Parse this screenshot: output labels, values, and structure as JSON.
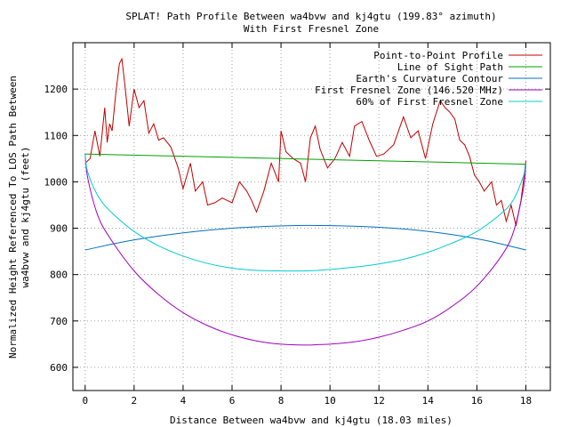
{
  "chart_data": {
    "type": "line",
    "title": "SPLAT! Path Profile Between wa4bvw and kj4gtu (199.83° azimuth)",
    "subtitle": "With First Fresnel Zone",
    "xlabel": "Distance Between wa4bvw and kj4gtu (18.03 miles)",
    "ylabel_line1": "Normalized Height Referenced To LOS Path Between",
    "ylabel_line2": "wa4bvw and kj4gtu (feet)",
    "xlim": [
      -0.5,
      19.0
    ],
    "ylim": [
      550,
      1300
    ],
    "x_ticks": [
      0,
      2,
      4,
      6,
      8,
      10,
      12,
      14,
      16,
      18
    ],
    "y_ticks": [
      600,
      700,
      800,
      900,
      1000,
      1100,
      1200
    ],
    "grid": true,
    "legend_position": "top-right",
    "series": [
      {
        "name": "Point-to-Point Profile",
        "color": "#c00000",
        "x": [
          0.0,
          0.2,
          0.4,
          0.6,
          0.8,
          0.9,
          1.0,
          1.1,
          1.25,
          1.4,
          1.5,
          1.6,
          1.7,
          1.8,
          2.0,
          2.2,
          2.4,
          2.6,
          2.8,
          3.0,
          3.2,
          3.5,
          3.8,
          4.0,
          4.3,
          4.5,
          4.8,
          5.0,
          5.3,
          5.6,
          6.0,
          6.3,
          6.6,
          6.8,
          7.0,
          7.3,
          7.6,
          7.9,
          8.0,
          8.2,
          8.5,
          8.8,
          9.0,
          9.2,
          9.4,
          9.6,
          9.9,
          10.2,
          10.5,
          10.8,
          11.0,
          11.3,
          11.6,
          11.9,
          12.2,
          12.6,
          13.0,
          13.3,
          13.6,
          13.9,
          14.2,
          14.5,
          14.7,
          14.9,
          15.1,
          15.3,
          15.5,
          15.7,
          15.9,
          16.1,
          16.3,
          16.6,
          16.8,
          17.0,
          17.2,
          17.4,
          17.6,
          17.8,
          18.0
        ],
        "values": [
          1040,
          1050,
          1110,
          1055,
          1160,
          1085,
          1125,
          1110,
          1190,
          1255,
          1265,
          1220,
          1170,
          1120,
          1200,
          1160,
          1175,
          1105,
          1125,
          1090,
          1095,
          1075,
          1030,
          985,
          1040,
          980,
          1000,
          950,
          955,
          965,
          955,
          1000,
          980,
          960,
          935,
          980,
          1040,
          1000,
          1110,
          1065,
          1050,
          1040,
          1000,
          1095,
          1120,
          1070,
          1030,
          1050,
          1085,
          1055,
          1120,
          1130,
          1090,
          1055,
          1060,
          1080,
          1140,
          1095,
          1110,
          1050,
          1125,
          1175,
          1160,
          1150,
          1135,
          1090,
          1080,
          1055,
          1015,
          1000,
          980,
          1000,
          950,
          960,
          915,
          950,
          905,
          960,
          1045
        ]
      },
      {
        "name": "Line of Sight Path",
        "color": "#00a000",
        "x": [
          0.0,
          18.0
        ],
        "values": [
          1060,
          1038
        ]
      },
      {
        "name": "Earth's Curvature Contour",
        "color": "#0070c0",
        "type": "curve",
        "x": [
          0.0,
          1.5,
          3.0,
          4.5,
          6.0,
          7.5,
          9.0,
          10.5,
          12.0,
          13.5,
          15.0,
          16.5,
          18.0
        ],
        "values": [
          853,
          870,
          883,
          893,
          900,
          904,
          906,
          905,
          902,
          896,
          886,
          872,
          853
        ]
      },
      {
        "name": "First Fresnel Zone (146.520 MHz)",
        "color": "#a000c0",
        "type": "curve",
        "x": [
          0.0,
          0.1,
          0.5,
          1.0,
          2.0,
          3.0,
          4.0,
          5.0,
          6.0,
          7.0,
          8.0,
          9.0,
          9.5,
          10.0,
          11.0,
          12.0,
          13.0,
          14.0,
          15.0,
          16.0,
          17.0,
          17.5,
          17.9,
          18.0
        ],
        "values": [
          1060,
          1010,
          930,
          880,
          808,
          757,
          718,
          690,
          670,
          657,
          650,
          648,
          649,
          650,
          655,
          665,
          680,
          700,
          732,
          775,
          840,
          893,
          985,
          1038
        ]
      },
      {
        "name": "60% of First Fresnel Zone",
        "color": "#00cccc",
        "type": "curve",
        "x": [
          0.0,
          0.1,
          0.5,
          1.0,
          2.0,
          3.0,
          4.0,
          5.0,
          6.0,
          7.0,
          8.0,
          9.0,
          9.5,
          10.0,
          11.0,
          12.0,
          13.0,
          14.0,
          15.0,
          16.0,
          17.0,
          17.5,
          17.9,
          18.0
        ],
        "values": [
          1060,
          1022,
          972,
          938,
          893,
          862,
          840,
          824,
          814,
          809,
          808,
          808,
          809,
          811,
          816,
          823,
          833,
          848,
          868,
          893,
          932,
          962,
          1012,
          1038
        ]
      }
    ]
  }
}
